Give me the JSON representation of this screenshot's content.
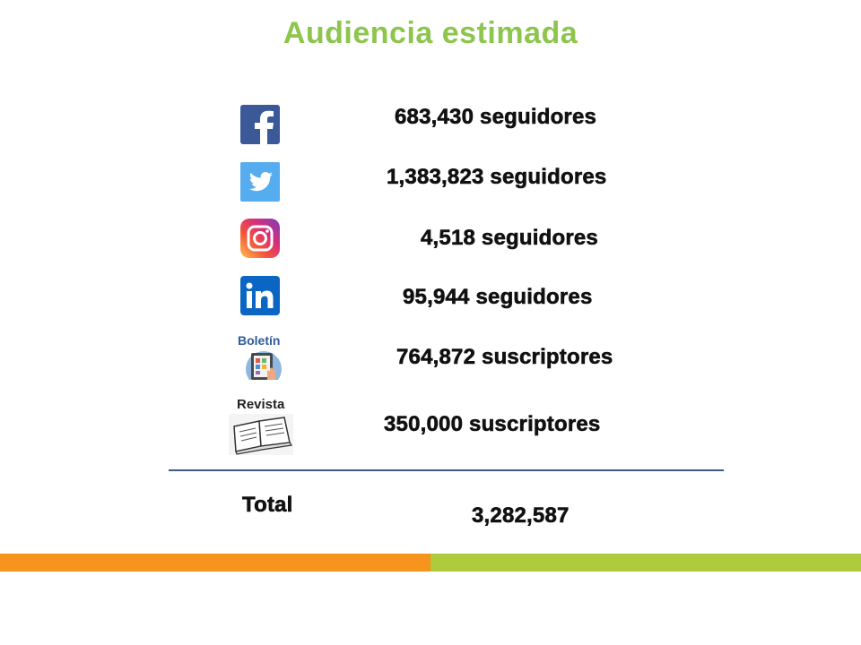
{
  "title": "Audiencia estimada",
  "colors": {
    "title": "#8DC54F",
    "text": "#111111",
    "rule": "#3B5A8A",
    "bar_orange": "#F7941D",
    "bar_green": "#AFCA3B",
    "facebook": "#3B5998",
    "twitter": "#55ACEE",
    "linkedin": "#0A66C2"
  },
  "rows": [
    {
      "icon": "facebook-icon",
      "value": "683,430 seguidores"
    },
    {
      "icon": "twitter-icon",
      "value": "1,383,823 seguidores"
    },
    {
      "icon": "instagram-icon",
      "value": "4,518 seguidores"
    },
    {
      "icon": "linkedin-icon",
      "value": "95,944 seguidores"
    },
    {
      "icon": "newsletter-icon",
      "icon_label": "Boletín",
      "value": "764,872 suscriptores"
    },
    {
      "icon": "magazine-icon",
      "icon_label": "Revista",
      "value": "350,000 suscriptores"
    }
  ],
  "total": {
    "label": "Total",
    "value": "3,282,587"
  }
}
